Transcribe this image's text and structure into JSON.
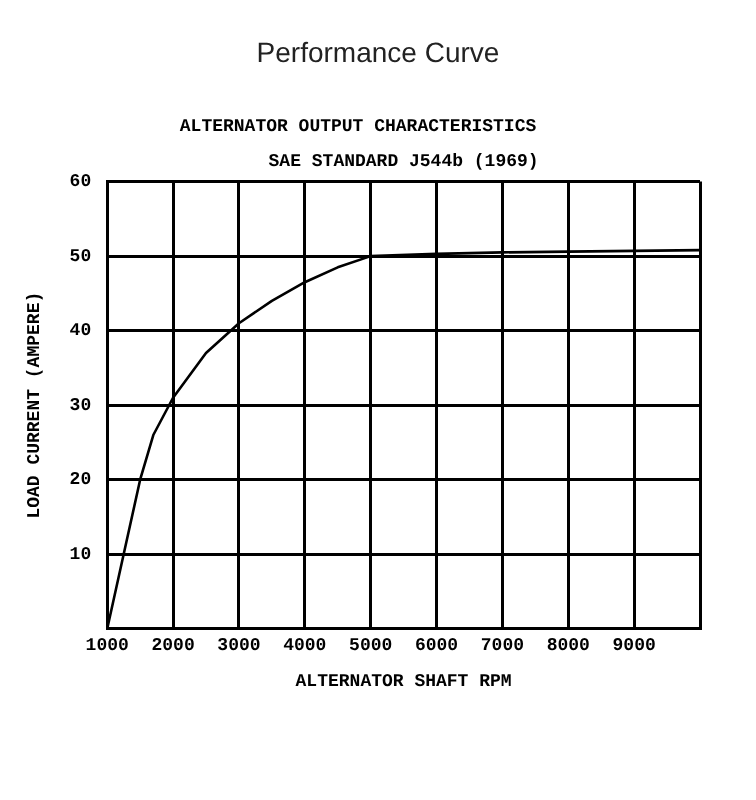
{
  "chart_data": {
    "type": "line",
    "title": "Performance Curve",
    "subtitle": "ALTERNATOR OUTPUT CHARACTERISTICS",
    "annotations": [
      "SAE STANDARD J544b (1969)"
    ],
    "xlabel": "ALTERNATOR SHAFT RPM",
    "ylabel": "LOAD CURRENT (AMPERE)",
    "x": [
      1000,
      1250,
      1500,
      1700,
      2000,
      2500,
      3000,
      3500,
      4000,
      4500,
      5000,
      6000,
      7000,
      8000,
      9000,
      10000
    ],
    "series": [
      {
        "color": "#000000",
        "values": [
          0,
          10,
          20,
          26,
          31,
          37,
          41,
          44,
          46.5,
          48.5,
          50,
          50.3,
          50.5,
          50.6,
          50.7,
          50.8
        ]
      }
    ],
    "xlim": [
      1000,
      10000
    ],
    "xticks": [
      1000,
      2000,
      3000,
      4000,
      5000,
      6000,
      7000,
      8000,
      9000,
      {
        "value": 10000,
        "label": null
      }
    ],
    "ylim": [
      0,
      60
    ],
    "yticks": [
      {
        "value": 0,
        "label": null
      },
      10,
      20,
      30,
      40,
      50,
      60
    ],
    "grid": true,
    "legend": false,
    "marker": "none",
    "line_style": "solid"
  }
}
